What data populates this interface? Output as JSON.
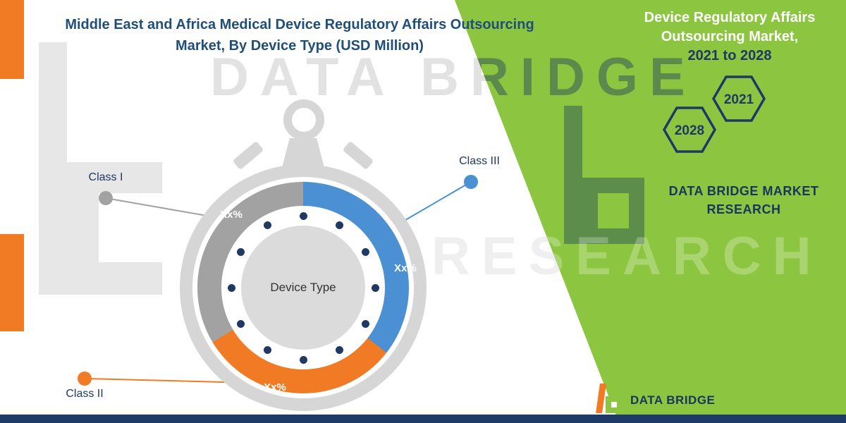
{
  "title": {
    "line1": "Middle East and Africa Medical Device Regulatory Affairs Outsourcing",
    "line2": "Market, By Device Type (USD Million)"
  },
  "right_panel": {
    "heading_line1": "Device Regulatory Affairs",
    "heading_line2": "Outsourcing Market,",
    "period": "2021 to 2028",
    "hexagons": [
      {
        "label": "2028"
      },
      {
        "label": "2021"
      }
    ],
    "brand": "DATA BRIDGE MARKET RESEARCH"
  },
  "watermark": {
    "line1": "DATA BRIDGE",
    "line2": "RESEARCH"
  },
  "chart_data": {
    "type": "pie",
    "title": "Middle East and Africa Medical Device Regulatory Affairs Outsourcing Market, By Device Type (USD Million)",
    "center_label": "Device Type",
    "unit": "USD Million",
    "legend_position": "callout-labels",
    "values_note": "percentages shown as placeholder text Xx%",
    "segments": [
      {
        "name": "Class III",
        "value_label": "Xx%",
        "color": "#4a90d2",
        "start_deg": 0,
        "end_deg": 128
      },
      {
        "name": "Class II",
        "value_label": "Xx%",
        "color": "#f07b24",
        "start_deg": 128,
        "end_deg": 239
      },
      {
        "name": "Class I",
        "value_label": "Xx%",
        "color": "#a2a2a2",
        "start_deg": 239,
        "end_deg": 360
      }
    ]
  },
  "footer_logo": {
    "name": "DATA BRIDGE"
  },
  "colors": {
    "accent_green": "#8cc640",
    "navy": "#1f3864",
    "title_blue": "#1f4e79",
    "orange": "#f07b24",
    "segment_blue": "#4a90d2",
    "segment_gray": "#a2a2a2",
    "watch_body_gray": "#d6d6d6"
  }
}
